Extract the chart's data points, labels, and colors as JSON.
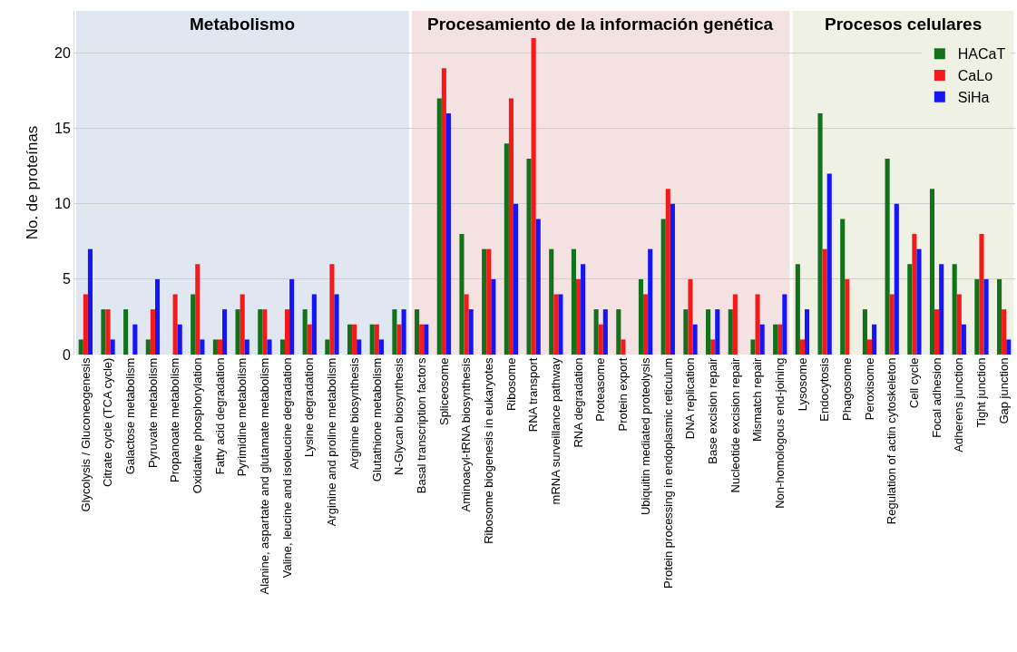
{
  "chart_data": {
    "type": "bar",
    "ylabel": "No. de proteínas",
    "categories": [
      "Glycolysis / Gluconeogenesis",
      "Citrate cycle (TCA cycle)",
      "Galactose metabolism",
      "Pyruvate metabolism",
      "Propanoate metabolism",
      "Oxidative phosphorylation",
      "Fatty acid degradation",
      "Pyrimidine metabolism",
      "Alanine, aspartate and glutamate metabolism",
      "Valine, leucine and isoleucine degradation",
      "Lysine degradation",
      "Arginine and proline metabolism",
      "Arginine biosynthesis",
      "Glutathione metabolism",
      "N-Glycan biosynthesis",
      "Basal transcription factors",
      "Spliceosome",
      "Aminoacyl-tRNA biosynthesis",
      "Ribosome biogenesis in eukaryotes",
      "Ribosome",
      "RNA transport",
      "mRNA surveillance pathway",
      "RNA degradation",
      "Proteasome",
      "Protein export",
      "Ubiquitin mediated proteolysis",
      "Protein processing in endoplasmic reticulum",
      "DNA replication",
      "Base excision repair",
      "Nucleotide excision repair",
      "Mismatch repair",
      "Non-homologous end-joining",
      "Lysosome",
      "Endocytosis",
      "Phagosome",
      "Peroxisome",
      "Regulation of actin cytoskeleton",
      "Cell cycle",
      "Focal adhesion",
      "Adherens junction",
      "Tight junction",
      "Gap junction"
    ],
    "series": [
      {
        "name": "HACaT",
        "color": "#13701b",
        "values": [
          1,
          3,
          3,
          1,
          0,
          4,
          1,
          3,
          3,
          1,
          3,
          1,
          2,
          2,
          3,
          3,
          17,
          8,
          7,
          14,
          13,
          7,
          7,
          3,
          3,
          5,
          9,
          3,
          3,
          3,
          1,
          2,
          6,
          16,
          9,
          3,
          13,
          6,
          11,
          6,
          5,
          5
        ]
      },
      {
        "name": "CaLo",
        "color": "#f51a1a",
        "values": [
          4,
          3,
          0,
          3,
          4,
          6,
          1,
          4,
          3,
          3,
          2,
          6,
          2,
          2,
          2,
          2,
          19,
          4,
          7,
          17,
          21,
          4,
          5,
          2,
          1,
          4,
          11,
          5,
          1,
          4,
          4,
          2,
          1,
          7,
          5,
          1,
          4,
          8,
          3,
          4,
          8,
          3
        ]
      },
      {
        "name": "SiHa",
        "color": "#1515f5",
        "values": [
          7,
          1,
          2,
          5,
          2,
          1,
          3,
          1,
          1,
          5,
          4,
          4,
          1,
          1,
          3,
          2,
          16,
          3,
          5,
          10,
          9,
          4,
          6,
          3,
          0,
          7,
          10,
          2,
          3,
          0,
          2,
          4,
          3,
          12,
          0,
          2,
          10,
          7,
          6,
          2,
          5,
          1
        ]
      }
    ],
    "ylim": [
      0,
      22.8
    ],
    "yticks": [
      0,
      5,
      10,
      15,
      20
    ],
    "grid": "y",
    "legend": "top right",
    "bands": [
      {
        "axis": "x",
        "from": "Glycolysis / Gluconeogenesis",
        "to": "N-Glycan biosynthesis",
        "label": "Metabolismo",
        "color": "#e1e7f1"
      },
      {
        "axis": "x",
        "from": "Basal transcription factors",
        "to": "Non-homologous end-joining",
        "label": "Procesamiento de la información genética",
        "color": "#f4e1e1"
      },
      {
        "axis": "x",
        "from": "Lysosome",
        "to": "Gap junction",
        "label": "Procesos celulares",
        "color": "#eef1e3"
      }
    ]
  }
}
